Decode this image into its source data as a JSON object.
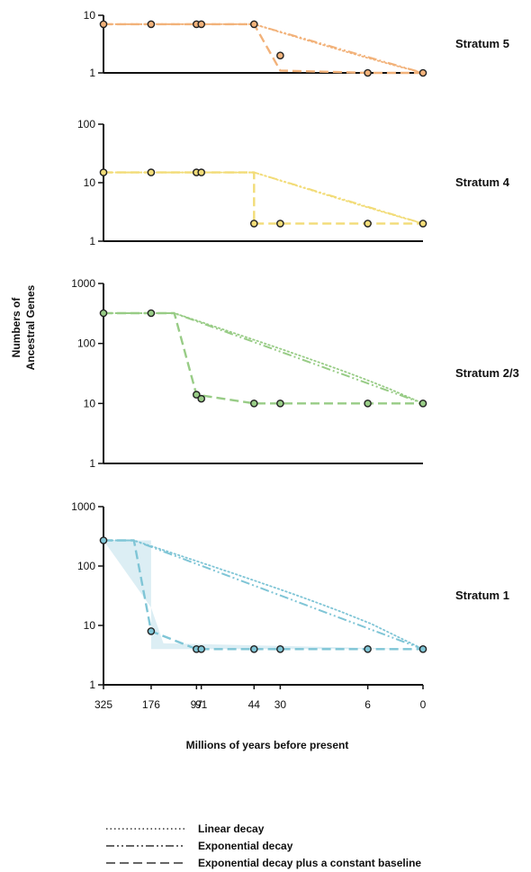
{
  "chart_data": {
    "type": "line",
    "xlabel": "Millions of years before present",
    "ylabel_lines": [
      "Numbers of",
      "Ancestral Genes"
    ],
    "x_axis": {
      "reversed": true,
      "range": [
        325,
        0
      ],
      "ticks": [
        325,
        176,
        97,
        91,
        44,
        30,
        6,
        0
      ],
      "tick_labels": [
        "325",
        "176",
        "97",
        "91",
        "44",
        "30",
        "6",
        "0"
      ],
      "scale": "log"
    },
    "y_scale": "log",
    "legend": {
      "placement": "bottom-left",
      "entries": [
        {
          "style": "dotted",
          "label": "Linear decay"
        },
        {
          "style": "dash-dot-dot",
          "label": "Exponential decay"
        },
        {
          "style": "dashed",
          "label": "Exponential decay plus a constant baseline"
        }
      ]
    },
    "panels": [
      {
        "name": "Stratum 5",
        "color": "#f2b27a",
        "ylim": [
          1,
          10
        ],
        "yticks": [
          1,
          10
        ],
        "points": [
          {
            "x": 325,
            "y": 7
          },
          {
            "x": 176,
            "y": 7
          },
          {
            "x": 97,
            "y": 7
          },
          {
            "x": 91,
            "y": 7
          },
          {
            "x": 44,
            "y": 7
          },
          {
            "x": 30,
            "y": 2
          },
          {
            "x": 6,
            "y": 1
          },
          {
            "x": 0,
            "y": 1
          }
        ],
        "linear": [
          [
            44,
            7
          ],
          [
            0,
            1
          ]
        ],
        "exponential": [
          [
            44,
            7
          ],
          [
            0,
            1
          ]
        ],
        "baseline": [
          [
            325,
            7
          ],
          [
            44,
            7
          ],
          [
            30,
            1.1
          ],
          [
            6,
            1
          ],
          [
            0,
            1
          ]
        ]
      },
      {
        "name": "Stratum 4",
        "color": "#f2dc78",
        "ylim": [
          1,
          100
        ],
        "yticks": [
          1,
          10,
          100
        ],
        "points": [
          {
            "x": 325,
            "y": 15
          },
          {
            "x": 176,
            "y": 15
          },
          {
            "x": 97,
            "y": 15
          },
          {
            "x": 91,
            "y": 15
          },
          {
            "x": 44,
            "y": 2
          },
          {
            "x": 30,
            "y": 2
          },
          {
            "x": 6,
            "y": 2
          },
          {
            "x": 0,
            "y": 2
          }
        ],
        "linear": [
          [
            44,
            15
          ],
          [
            0,
            2
          ]
        ],
        "exponential": [
          [
            44,
            15
          ],
          [
            0,
            2
          ]
        ],
        "baseline": [
          [
            325,
            15
          ],
          [
            44,
            15
          ],
          [
            44,
            2
          ],
          [
            0,
            2
          ]
        ]
      },
      {
        "name": "Stratum 2/3",
        "color": "#98cc86",
        "ylim": [
          1,
          1000
        ],
        "yticks": [
          1,
          10,
          100,
          1000
        ],
        "points": [
          {
            "x": 325,
            "y": 320
          },
          {
            "x": 176,
            "y": 320
          },
          {
            "x": 97,
            "y": 14
          },
          {
            "x": 91,
            "y": 12
          },
          {
            "x": 44,
            "y": 10
          },
          {
            "x": 30,
            "y": 10
          },
          {
            "x": 6,
            "y": 10
          },
          {
            "x": 0,
            "y": 10
          }
        ],
        "linear": [
          [
            130,
            320
          ],
          [
            0,
            10
          ]
        ],
        "exponential": [
          [
            130,
            320
          ],
          [
            0,
            10
          ]
        ],
        "baseline": [
          [
            325,
            320
          ],
          [
            130,
            320
          ],
          [
            97,
            14
          ],
          [
            44,
            10
          ],
          [
            0,
            10
          ]
        ]
      },
      {
        "name": "Stratum 1",
        "color": "#7fc5d6",
        "band_color": "#dceef4",
        "ylim": [
          1,
          1000
        ],
        "yticks": [
          1,
          10,
          100,
          1000
        ],
        "points": [
          {
            "x": 325,
            "y": 270
          },
          {
            "x": 176,
            "y": 8
          },
          {
            "x": 97,
            "y": 4
          },
          {
            "x": 91,
            "y": 4
          },
          {
            "x": 44,
            "y": 4
          },
          {
            "x": 30,
            "y": 4
          },
          {
            "x": 6,
            "y": 4
          },
          {
            "x": 0,
            "y": 4
          }
        ],
        "linear": [
          [
            220,
            270
          ],
          [
            0,
            4
          ]
        ],
        "exponential": [
          [
            220,
            270
          ],
          [
            0,
            4
          ]
        ],
        "baseline": [
          [
            325,
            270
          ],
          [
            220,
            270
          ],
          [
            176,
            8
          ],
          [
            97,
            4
          ],
          [
            0,
            4
          ]
        ],
        "band_upper": [
          [
            325,
            270
          ],
          [
            220,
            270
          ],
          [
            176,
            270
          ],
          [
            176,
            4
          ],
          [
            0,
            4
          ]
        ],
        "band_lower": [
          [
            325,
            270
          ],
          [
            176,
            20
          ],
          [
            150,
            5
          ],
          [
            0,
            4
          ]
        ]
      }
    ]
  }
}
